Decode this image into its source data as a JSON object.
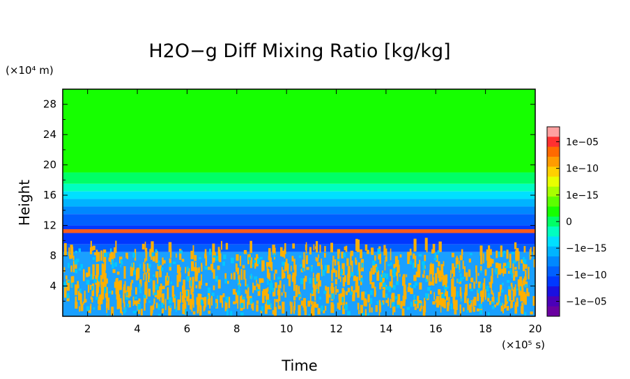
{
  "chart_data": {
    "type": "heatmap",
    "title": "H2O−g Diff Mixing Ratio [kg/kg]",
    "xlabel": "Time",
    "ylabel": "Height",
    "x_unit_label": "(×10⁵ s)",
    "y_unit_label": "(×10⁴ m)",
    "xlim": [
      1,
      20
    ],
    "ylim": [
      0,
      30
    ],
    "x_ticks": [
      2,
      4,
      6,
      8,
      10,
      12,
      14,
      16,
      18,
      20
    ],
    "y_ticks": [
      4,
      8,
      12,
      16,
      20,
      24,
      28
    ],
    "x_tick_labels": [
      "2",
      "4",
      "6",
      "8",
      "10",
      "12",
      "14",
      "16",
      "18",
      "20"
    ],
    "y_tick_labels": [
      "4",
      "8",
      "12",
      "16",
      "20",
      "24",
      "28"
    ],
    "colorbar": {
      "labels": [
        "1e−05",
        "1e−10",
        "1e−15",
        "0",
        "−1e−15",
        "−1e−10",
        "−1e−05"
      ],
      "colors": [
        "#ffa0a0",
        "#ff3030",
        "#ff6a00",
        "#ff9c00",
        "#ffd000",
        "#e8ff00",
        "#a8ff00",
        "#5cff00",
        "#16ff00",
        "#00ff66",
        "#00ffc0",
        "#00e0ff",
        "#00b4ff",
        "#0088ff",
        "#0060ff",
        "#0038ff",
        "#1a10e0",
        "#4a00b8",
        "#6a00a0"
      ]
    },
    "bands": [
      {
        "from": 19,
        "to": 30,
        "color": "#16ff00"
      },
      {
        "from": 17.5,
        "to": 19,
        "color": "#00ff66"
      },
      {
        "from": 16.5,
        "to": 17.5,
        "color": "#00ffc0"
      },
      {
        "from": 15.5,
        "to": 16.5,
        "color": "#00e0ff"
      },
      {
        "from": 14.5,
        "to": 15.5,
        "color": "#00b4ff"
      },
      {
        "from": 13.5,
        "to": 14.5,
        "color": "#0088ff"
      },
      {
        "from": 12,
        "to": 13.5,
        "color": "#0060ff"
      },
      {
        "from": 11.5,
        "to": 12,
        "color": "#0038ff"
      },
      {
        "from": 11.0,
        "to": 11.5,
        "color": "#ff5a1a"
      },
      {
        "from": 9.5,
        "to": 11.0,
        "color": "#0038ff"
      },
      {
        "from": 8.5,
        "to": 9.5,
        "color": "#0060ff"
      },
      {
        "from": 0,
        "to": 8.5,
        "color": "#1aa0ff"
      }
    ],
    "noise_region": {
      "from": 0,
      "to": 9,
      "color": "#ffb000"
    }
  }
}
